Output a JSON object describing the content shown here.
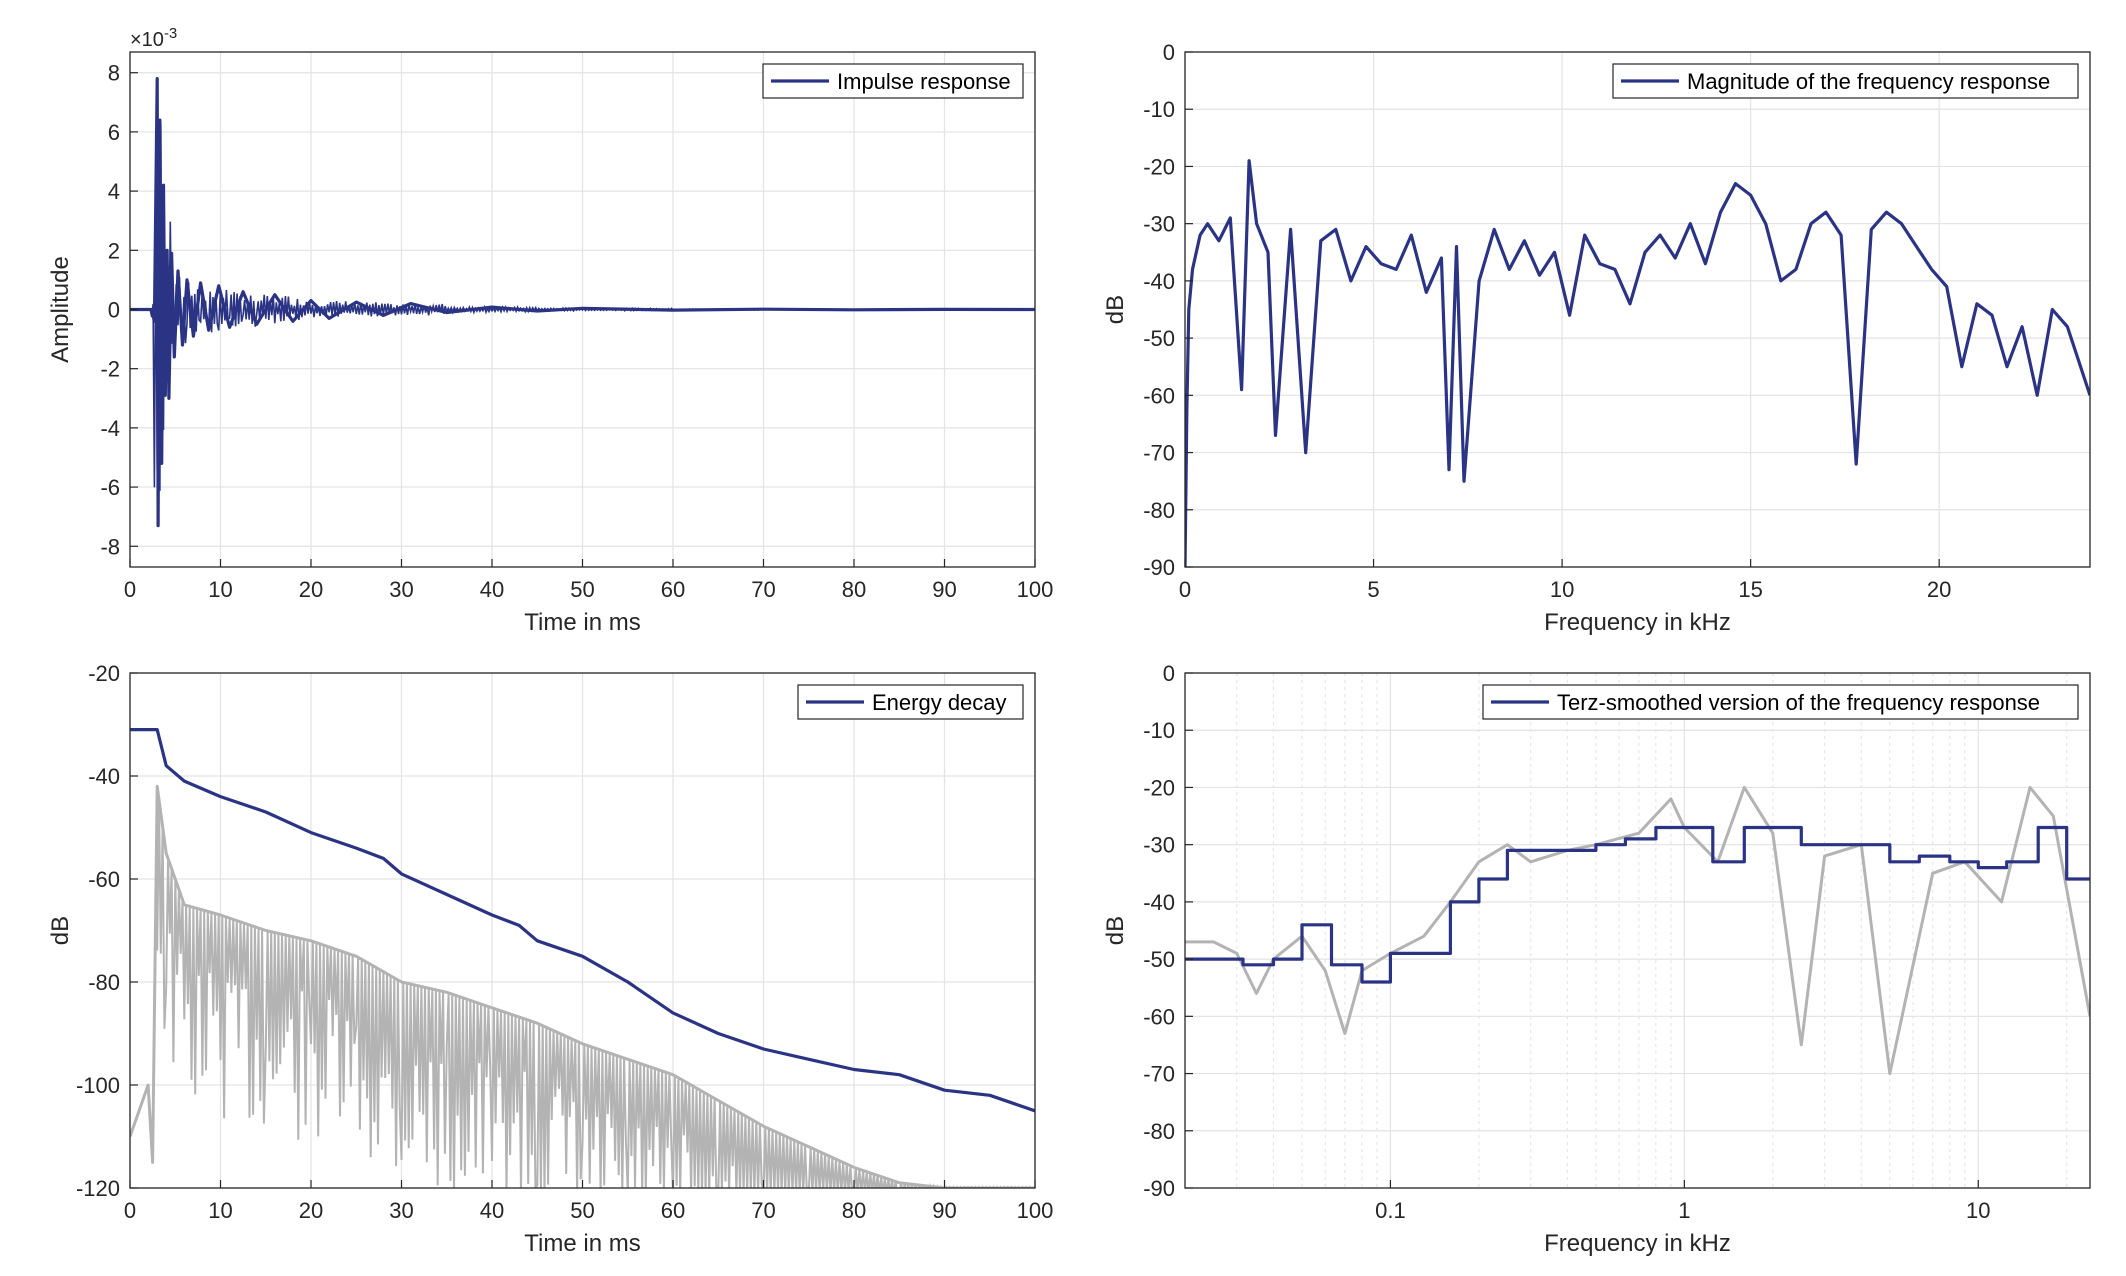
{
  "colors": {
    "series_main": "#2b3484",
    "series_gray": "#b3b3b3",
    "grid": "#e3e3e3",
    "axis": "#262626"
  },
  "chart_data": [
    {
      "id": "impulse",
      "type": "line",
      "xlabel": "Time in ms",
      "ylabel": "Amplitude",
      "xlim": [
        0,
        100
      ],
      "ylim": [
        -8.7,
        8.7
      ],
      "x_ticks": [
        "0",
        "10",
        "20",
        "30",
        "40",
        "50",
        "60",
        "70",
        "80",
        "90",
        "100"
      ],
      "y_ticks": [
        "8",
        "6",
        "4",
        "2",
        "0",
        "-2",
        "-4",
        "-6",
        "-8"
      ],
      "y_exponent": "×10",
      "y_exponent_power": "-3",
      "grid": true,
      "legend_position": "top-right",
      "series": [
        {
          "name": "Impulse response",
          "x": [
            0,
            2.4,
            2.7,
            3.0,
            3.1,
            3.3,
            3.5,
            3.7,
            3.9,
            4.1,
            4.3,
            4.6,
            4.9,
            5.3,
            5.8,
            6.3,
            7.0,
            7.8,
            8.7,
            9.8,
            11,
            12.5,
            14,
            16,
            18,
            20,
            22,
            25,
            28,
            31,
            35,
            40,
            45,
            50,
            60,
            70,
            80,
            90,
            100
          ],
          "values": [
            0,
            0,
            -0.4,
            7.8,
            -7.3,
            6.4,
            -5.2,
            4.2,
            -2.9,
            2.0,
            -3.0,
            1.9,
            -1.6,
            1.3,
            -1.2,
            1.0,
            -0.9,
            0.9,
            -0.7,
            0.8,
            -0.6,
            0.6,
            -0.5,
            0.5,
            -0.4,
            0.3,
            -0.3,
            0.25,
            -0.2,
            0.2,
            -0.1,
            0.08,
            -0.05,
            0.04,
            -0.02,
            0.01,
            -0.01,
            0.005,
            0
          ]
        }
      ]
    },
    {
      "id": "magnitude",
      "type": "line",
      "xlabel": "Frequency in kHz",
      "ylabel": "dB",
      "xlim": [
        0,
        24
      ],
      "ylim": [
        -90,
        0
      ],
      "x_ticks": [
        "0",
        "5",
        "10",
        "15",
        "20"
      ],
      "x_tick_values": [
        0,
        5,
        10,
        15,
        20
      ],
      "y_ticks": [
        "0",
        "-10",
        "-20",
        "-30",
        "-40",
        "-50",
        "-60",
        "-70",
        "-80",
        "-90"
      ],
      "grid": true,
      "legend_position": "top-right",
      "series": [
        {
          "name": "Magnitude of the frequency response",
          "x": [
            0,
            0.05,
            0.1,
            0.2,
            0.4,
            0.6,
            0.9,
            1.2,
            1.5,
            1.7,
            1.9,
            2.2,
            2.4,
            2.8,
            3.2,
            3.6,
            4.0,
            4.4,
            4.8,
            5.2,
            5.6,
            6.0,
            6.4,
            6.8,
            7.0,
            7.2,
            7.4,
            7.8,
            8.2,
            8.6,
            9.0,
            9.4,
            9.8,
            10.2,
            10.6,
            11.0,
            11.4,
            11.8,
            12.2,
            12.6,
            13.0,
            13.4,
            13.8,
            14.2,
            14.6,
            15.0,
            15.4,
            15.8,
            16.2,
            16.6,
            17.0,
            17.4,
            17.8,
            18.2,
            18.6,
            19.0,
            19.4,
            19.8,
            20.2,
            20.6,
            21.0,
            21.4,
            21.8,
            22.2,
            22.6,
            23.0,
            23.4,
            24.0
          ],
          "values": [
            -90,
            -62,
            -45,
            -38,
            -32,
            -30,
            -33,
            -29,
            -59,
            -19,
            -30,
            -35,
            -67,
            -31,
            -70,
            -33,
            -31,
            -40,
            -34,
            -37,
            -38,
            -32,
            -42,
            -36,
            -73,
            -34,
            -75,
            -40,
            -31,
            -38,
            -33,
            -39,
            -35,
            -46,
            -32,
            -37,
            -38,
            -44,
            -35,
            -32,
            -36,
            -30,
            -37,
            -28,
            -23,
            -25,
            -30,
            -40,
            -38,
            -30,
            -28,
            -32,
            -72,
            -31,
            -28,
            -30,
            -34,
            -38,
            -41,
            -55,
            -44,
            -46,
            -55,
            -48,
            -60,
            -45,
            -48,
            -60
          ]
        }
      ]
    },
    {
      "id": "energy",
      "type": "line",
      "xlabel": "Time in ms",
      "ylabel": "dB",
      "xlim": [
        0,
        100
      ],
      "ylim": [
        -120,
        -20
      ],
      "x_ticks": [
        "0",
        "10",
        "20",
        "30",
        "40",
        "50",
        "60",
        "70",
        "80",
        "90",
        "100"
      ],
      "y_ticks": [
        "-20",
        "-40",
        "-60",
        "-80",
        "-100",
        "-120"
      ],
      "y_tick_values": [
        -20,
        -40,
        -60,
        -80,
        -100,
        -120
      ],
      "grid": true,
      "legend_position": "top-right",
      "series": [
        {
          "name": "Energy decay",
          "x": [
            0,
            3,
            4,
            6,
            10,
            15,
            20,
            25,
            28,
            30,
            35,
            40,
            43,
            45,
            50,
            55,
            60,
            65,
            70,
            75,
            80,
            85,
            90,
            95,
            100
          ],
          "values": [
            -31,
            -31,
            -38,
            -41,
            -44,
            -47,
            -51,
            -54,
            -56,
            -59,
            -63,
            -67,
            -69,
            -72,
            -75,
            -80,
            -86,
            -90,
            -93,
            -95,
            -97,
            -98,
            -101,
            -102,
            -105
          ]
        },
        {
          "x": [
            0,
            1,
            2,
            2.5,
            3,
            4,
            6,
            10,
            15,
            20,
            25,
            30,
            35,
            40,
            45,
            50,
            55,
            60,
            65,
            70,
            75,
            80,
            85,
            90,
            100
          ],
          "values": [
            -110,
            -105,
            -100,
            -115,
            -42,
            -55,
            -65,
            -67,
            -70,
            -72,
            -75,
            -80,
            -82,
            -85,
            -88,
            -92,
            -95,
            -98,
            -103,
            -108,
            -112,
            -116,
            -119,
            -120,
            -120
          ]
        }
      ]
    },
    {
      "id": "terz",
      "type": "line",
      "xlabel": "Frequency in kHz",
      "ylabel": "dB",
      "xscale": "log",
      "xlim": [
        0.02,
        24
      ],
      "ylim": [
        -90,
        0
      ],
      "x_ticks": [
        "0.1",
        "1",
        "10"
      ],
      "x_tick_values": [
        0.1,
        1,
        10
      ],
      "y_ticks": [
        "0",
        "-10",
        "-20",
        "-30",
        "-40",
        "-50",
        "-60",
        "-70",
        "-80",
        "-90"
      ],
      "grid": true,
      "legend_position": "top-right",
      "series": [
        {
          "name": "Terz-smoothed version of the frequency response",
          "x": [
            0.02,
            0.025,
            0.0315,
            0.04,
            0.05,
            0.063,
            0.08,
            0.1,
            0.125,
            0.16,
            0.2,
            0.25,
            0.315,
            0.4,
            0.5,
            0.63,
            0.8,
            1.0,
            1.25,
            1.6,
            2.0,
            2.5,
            3.15,
            4.0,
            5.0,
            6.3,
            8.0,
            10.0,
            12.5,
            16.0,
            20.0,
            24.0
          ],
          "values": [
            -50,
            -50,
            -51,
            -50,
            -44,
            -51,
            -54,
            -49,
            -49,
            -40,
            -36,
            -31,
            -31,
            -31,
            -30,
            -29,
            -27,
            -27,
            -33,
            -27,
            -27,
            -30,
            -30,
            -30,
            -33,
            -32,
            -33,
            -34,
            -33,
            -27,
            -36,
            -36
          ]
        },
        {
          "x": [
            0.02,
            0.025,
            0.03,
            0.035,
            0.04,
            0.05,
            0.06,
            0.07,
            0.08,
            0.1,
            0.13,
            0.16,
            0.2,
            0.25,
            0.3,
            0.4,
            0.5,
            0.7,
            0.9,
            1.0,
            1.3,
            1.6,
            2.0,
            2.5,
            3.0,
            4.0,
            5.0,
            7.0,
            9.0,
            12.0,
            15.0,
            18.0,
            24.0
          ],
          "values": [
            -47,
            -47,
            -49,
            -56,
            -50,
            -46,
            -52,
            -63,
            -52,
            -49,
            -46,
            -40,
            -33,
            -30,
            -33,
            -31,
            -30,
            -28,
            -22,
            -27,
            -33,
            -20,
            -28,
            -65,
            -32,
            -30,
            -70,
            -35,
            -33,
            -40,
            -20,
            -25,
            -60
          ]
        }
      ]
    }
  ]
}
